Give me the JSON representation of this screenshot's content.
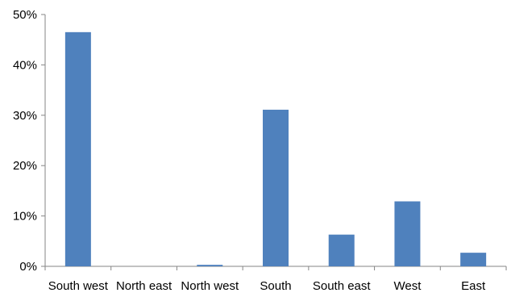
{
  "chart_data": {
    "type": "bar",
    "title": "",
    "xlabel": "",
    "ylabel": "",
    "categories": [
      "South west",
      "North east",
      "North west",
      "South",
      "South east",
      "West",
      "East"
    ],
    "values": [
      46.5,
      0,
      0.3,
      31.1,
      6.3,
      12.9,
      2.7
    ],
    "ylim": [
      0,
      50
    ],
    "yticks": [
      0,
      10,
      20,
      30,
      40,
      50
    ],
    "ytick_labels": [
      "0%",
      "10%",
      "20%",
      "30%",
      "40%",
      "50%"
    ],
    "grid": false,
    "legend": "none",
    "colors": {
      "bar": "#4f81bd",
      "axis": "#868686"
    }
  }
}
